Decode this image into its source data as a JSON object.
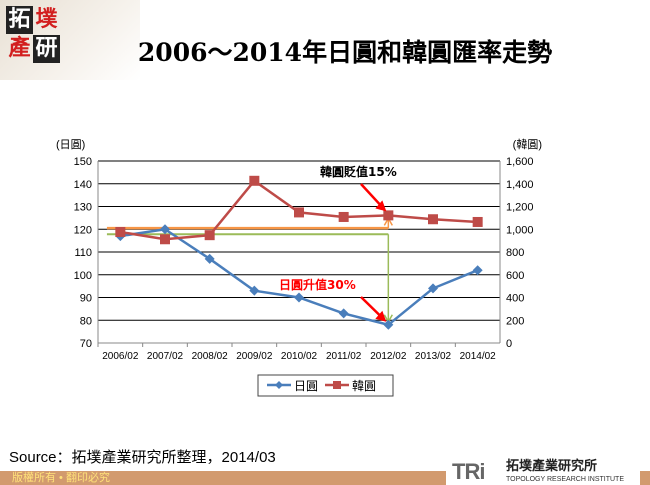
{
  "header": {
    "title": "2006～2014年日圓和韓圓匯率走勢",
    "logo_text": "拓墣產研"
  },
  "chart_data": {
    "type": "line",
    "title": "2006～2014年日圓和韓圓匯率走勢",
    "categories": [
      "2006/02",
      "2007/02",
      "2008/02",
      "2009/02",
      "2010/02",
      "2011/02",
      "2012/02",
      "2013/02",
      "2014/02"
    ],
    "left_axis": {
      "label": "(日圓)",
      "range": [
        70,
        150
      ],
      "ticks": [
        "70",
        "80",
        "90",
        "100",
        "110",
        "120",
        "130",
        "140",
        "150"
      ]
    },
    "right_axis": {
      "label": "(韓圓)",
      "range": [
        0,
        1600
      ],
      "ticks": [
        "0",
        "200",
        "400",
        "600",
        "800",
        "1,000",
        "1,200",
        "1,400",
        "1,600"
      ]
    },
    "series": [
      {
        "name": "日圓",
        "axis": "left",
        "color": "#4a7ebb",
        "marker": "diamond",
        "values": [
          117,
          120,
          107,
          93,
          90,
          83,
          78,
          94,
          102
        ]
      },
      {
        "name": "韓圓",
        "axis": "right",
        "color": "#be4b48",
        "marker": "square",
        "values": [
          976,
          912,
          948,
          1426,
          1148,
          1108,
          1122,
          1088,
          1064
        ]
      }
    ],
    "grid": true,
    "legend": "bottom",
    "annotations": [
      {
        "text": "韓圓貶值15%",
        "color": "#000000"
      },
      {
        "text": "日圓升值30%",
        "color": "#ff0000"
      }
    ],
    "reference_lines": [
      {
        "color": "#f79646",
        "axis": "left",
        "value": 120.5
      },
      {
        "color": "#9bbb59",
        "axis": "left",
        "value": 117.8
      }
    ]
  },
  "source": "Source：拓墣產業研究所整理，2014/03",
  "footer": {
    "copyright": "版權所有 • 翻印必究"
  },
  "brand": {
    "mark": "TRi",
    "name_zh": "拓墣產業研究所",
    "name_en": "TOPOLOGY RESEARCH INSTITUTE"
  }
}
